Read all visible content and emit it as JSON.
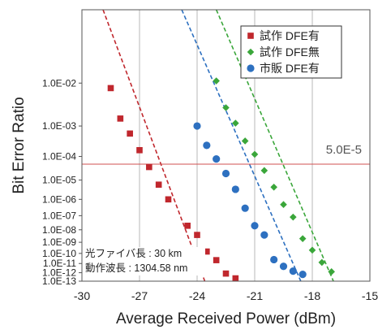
{
  "chart_data": {
    "type": "scatter",
    "xlabel": "Average Received Power (dBm)",
    "ylabel": "Bit Error Ratio",
    "xlim": [
      -30,
      -15
    ],
    "x_ticks": [
      -30,
      -27,
      -24,
      -21,
      -18,
      -15
    ],
    "x_tick_labels": [
      "-30",
      "-27",
      "-24",
      "-21",
      "-18",
      "-15"
    ],
    "y_scale": "log, double-log (Q-scale) spacing",
    "y_ticks": [
      0.01,
      0.001,
      0.0001,
      1e-05,
      1e-06,
      1e-07,
      1e-08,
      1e-09,
      1e-10,
      1e-11,
      1e-12,
      1e-13
    ],
    "y_tick_labels": [
      "1.0E-02",
      "1.0E-03",
      "1.0E-04",
      "1.0E-05",
      "1.0E-06",
      "1.0E-07",
      "1.0E-08",
      "1.0E-09",
      "1.0E-10",
      "1.0E-11",
      "1.0E-12",
      "1.0E-13"
    ],
    "grid": "vertical gridlines",
    "legend_position": "top-right",
    "series": [
      {
        "name": "試作 DFE有",
        "marker": "square",
        "color": "#c0272d",
        "x": [
          -28.5,
          -28.0,
          -27.5,
          -27.0,
          -26.5,
          -26.0,
          -25.5,
          -24.5,
          -24.0,
          -23.5,
          -23.0,
          -22.5,
          -22.0
        ],
        "y": [
          0.008,
          0.0016,
          0.0006,
          0.00017,
          3.8e-05,
          6e-06,
          1e-06,
          2e-08,
          4e-09,
          1.5e-10,
          2.2e-11,
          8e-13,
          2.2e-13
        ]
      },
      {
        "name": "試作 DFE無",
        "marker": "diamond",
        "color": "#3aa63a",
        "x": [
          -23.0,
          -22.5,
          -22.0,
          -21.5,
          -21.0,
          -20.5,
          -20.0,
          -19.5,
          -19.0,
          -18.5,
          -18.0,
          -17.5,
          -17.0
        ],
        "y": [
          0.011,
          0.003,
          0.0012,
          0.00035,
          0.00012,
          2.7e-05,
          4.5e-06,
          5e-07,
          8e-08,
          2e-09,
          2e-10,
          1.3e-11,
          1.3e-12
        ]
      },
      {
        "name": "市販 DFE有",
        "marker": "circle",
        "color": "#2d70c0",
        "x": [
          -24.0,
          -23.5,
          -23.0,
          -22.5,
          -22.0,
          -21.5,
          -21.0,
          -20.5,
          -20.0,
          -19.5,
          -19.0,
          -18.5
        ],
        "y": [
          0.001,
          0.00025,
          8e-05,
          2e-05,
          3.5e-06,
          3e-07,
          2e-08,
          4e-09,
          2.5e-11,
          5e-12,
          1.5e-12,
          6.5e-13
        ]
      }
    ],
    "fit_lines": [
      {
        "series": "試作 DFE有",
        "x": [
          -28.9,
          -23.6
        ],
        "y": [
          0.1,
          1e-13
        ]
      },
      {
        "series": "試作 DFE無",
        "x": [
          -23.0,
          -16.9
        ],
        "y": [
          0.1,
          1e-13
        ]
      },
      {
        "series": "市販 DFE有",
        "x": [
          -24.8,
          -18.6
        ],
        "y": [
          0.1,
          1e-13
        ]
      }
    ],
    "reference_line": {
      "y": 5e-05,
      "label": "5.0E-5",
      "color": "#d05050"
    },
    "annotations": [
      "光ファイバ長 : 30 km",
      "動作波長 : 1304.58 nm"
    ]
  }
}
